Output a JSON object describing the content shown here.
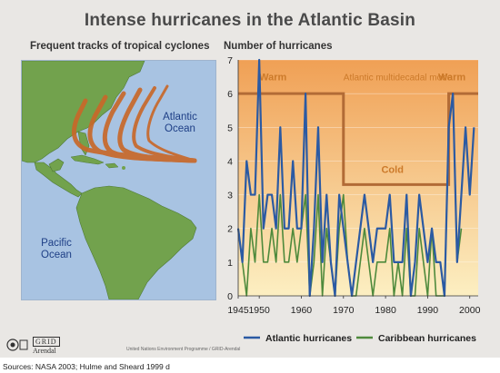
{
  "title": "Intense hurricanes in the Atlantic Basin",
  "map": {
    "heading": "Frequent tracks of tropical cyclones",
    "atlantic_label_1": "Atlantic",
    "atlantic_label_2": "Ocean",
    "pacific_label_1": "Pacific",
    "pacific_label_2": "Ocean"
  },
  "chart_heading": "Number of hurricanes",
  "colors": {
    "atlantic": "#2b5aa3",
    "caribbean": "#4e8a3c",
    "mode_line": "#b26b36",
    "mode_label": "#cc7a2a",
    "bg_top": "#f0a055",
    "bg_bottom": "#fcefc2",
    "tracks": "#c8682a"
  },
  "chart_data": {
    "type": "line",
    "title": "Number of hurricanes",
    "xlim": [
      1945,
      2002
    ],
    "ylim": [
      0,
      7
    ],
    "x_ticks": [
      1945,
      1950,
      1960,
      1970,
      1980,
      1990,
      2000
    ],
    "y_ticks": [
      0,
      1,
      2,
      3,
      4,
      5,
      6,
      7
    ],
    "series": [
      {
        "name": "Atlantic hurricanes",
        "x": [
          1945,
          1946,
          1947,
          1948,
          1949,
          1950,
          1951,
          1952,
          1953,
          1954,
          1955,
          1956,
          1957,
          1958,
          1959,
          1960,
          1961,
          1962,
          1963,
          1964,
          1965,
          1966,
          1967,
          1968,
          1969,
          1970,
          1971,
          1972,
          1973,
          1974,
          1975,
          1976,
          1977,
          1978,
          1979,
          1980,
          1981,
          1982,
          1983,
          1984,
          1985,
          1986,
          1987,
          1988,
          1989,
          1990,
          1991,
          1992,
          1993,
          1994,
          1995,
          1996,
          1997,
          1998,
          1999,
          2000,
          2001
        ],
        "values": [
          2,
          1,
          4,
          3,
          3,
          7,
          2,
          3,
          3,
          2,
          5,
          2,
          2,
          4,
          2,
          2,
          6,
          0,
          2,
          5,
          1,
          3,
          1,
          0,
          3,
          2,
          1,
          0,
          1,
          2,
          3,
          2,
          1,
          2,
          2,
          2,
          3,
          1,
          1,
          1,
          3,
          0,
          1,
          3,
          2,
          1,
          2,
          1,
          1,
          0,
          5,
          6,
          1,
          3,
          5,
          3,
          5
        ]
      },
      {
        "name": "Caribbean hurricanes",
        "x": [
          1945,
          1946,
          1947,
          1948,
          1949,
          1950,
          1951,
          1952,
          1953,
          1954,
          1955,
          1956,
          1957,
          1958,
          1959,
          1960,
          1961,
          1962,
          1963,
          1964,
          1965,
          1966,
          1967,
          1968,
          1969,
          1970,
          1971,
          1972,
          1973,
          1974,
          1975,
          1976,
          1977,
          1978,
          1979,
          1980,
          1981,
          1982,
          1983,
          1984,
          1985,
          1986,
          1987,
          1988,
          1989,
          1990,
          1991,
          1992,
          1993,
          1994,
          1995,
          1996,
          1997,
          1998
        ],
        "values": [
          2,
          1,
          0,
          2,
          1,
          3,
          1,
          1,
          2,
          1,
          3,
          1,
          1,
          2,
          1,
          2,
          3,
          0,
          1,
          3,
          0,
          2,
          1,
          0,
          2,
          3,
          1,
          0,
          0,
          1,
          2,
          1,
          0,
          1,
          1,
          1,
          2,
          0,
          1,
          0,
          2,
          0,
          0,
          2,
          1,
          0,
          2,
          0,
          0,
          0,
          5,
          6,
          1,
          2
        ]
      }
    ],
    "mode": {
      "label": "Atlantic multidecadal mode",
      "warm_label": "Warm",
      "cold_label": "Cold",
      "steps": [
        {
          "from": 1945,
          "to": 1970,
          "level": 6
        },
        {
          "from": 1970,
          "to": 1995,
          "level": 3.3
        },
        {
          "from": 1995,
          "to": 2002,
          "level": 6
        }
      ]
    },
    "legend": [
      "Atlantic hurricanes",
      "Caribbean hurricanes"
    ],
    "legend_position": "bottom"
  },
  "credits": {
    "grid_logo_1": "GRID",
    "grid_logo_2": "Arendal",
    "unep": "United Nations Environment Programme / GRID-Arendal",
    "sources": "Sources: NASA 2003;  Hulme and Sheard 1999 d"
  }
}
